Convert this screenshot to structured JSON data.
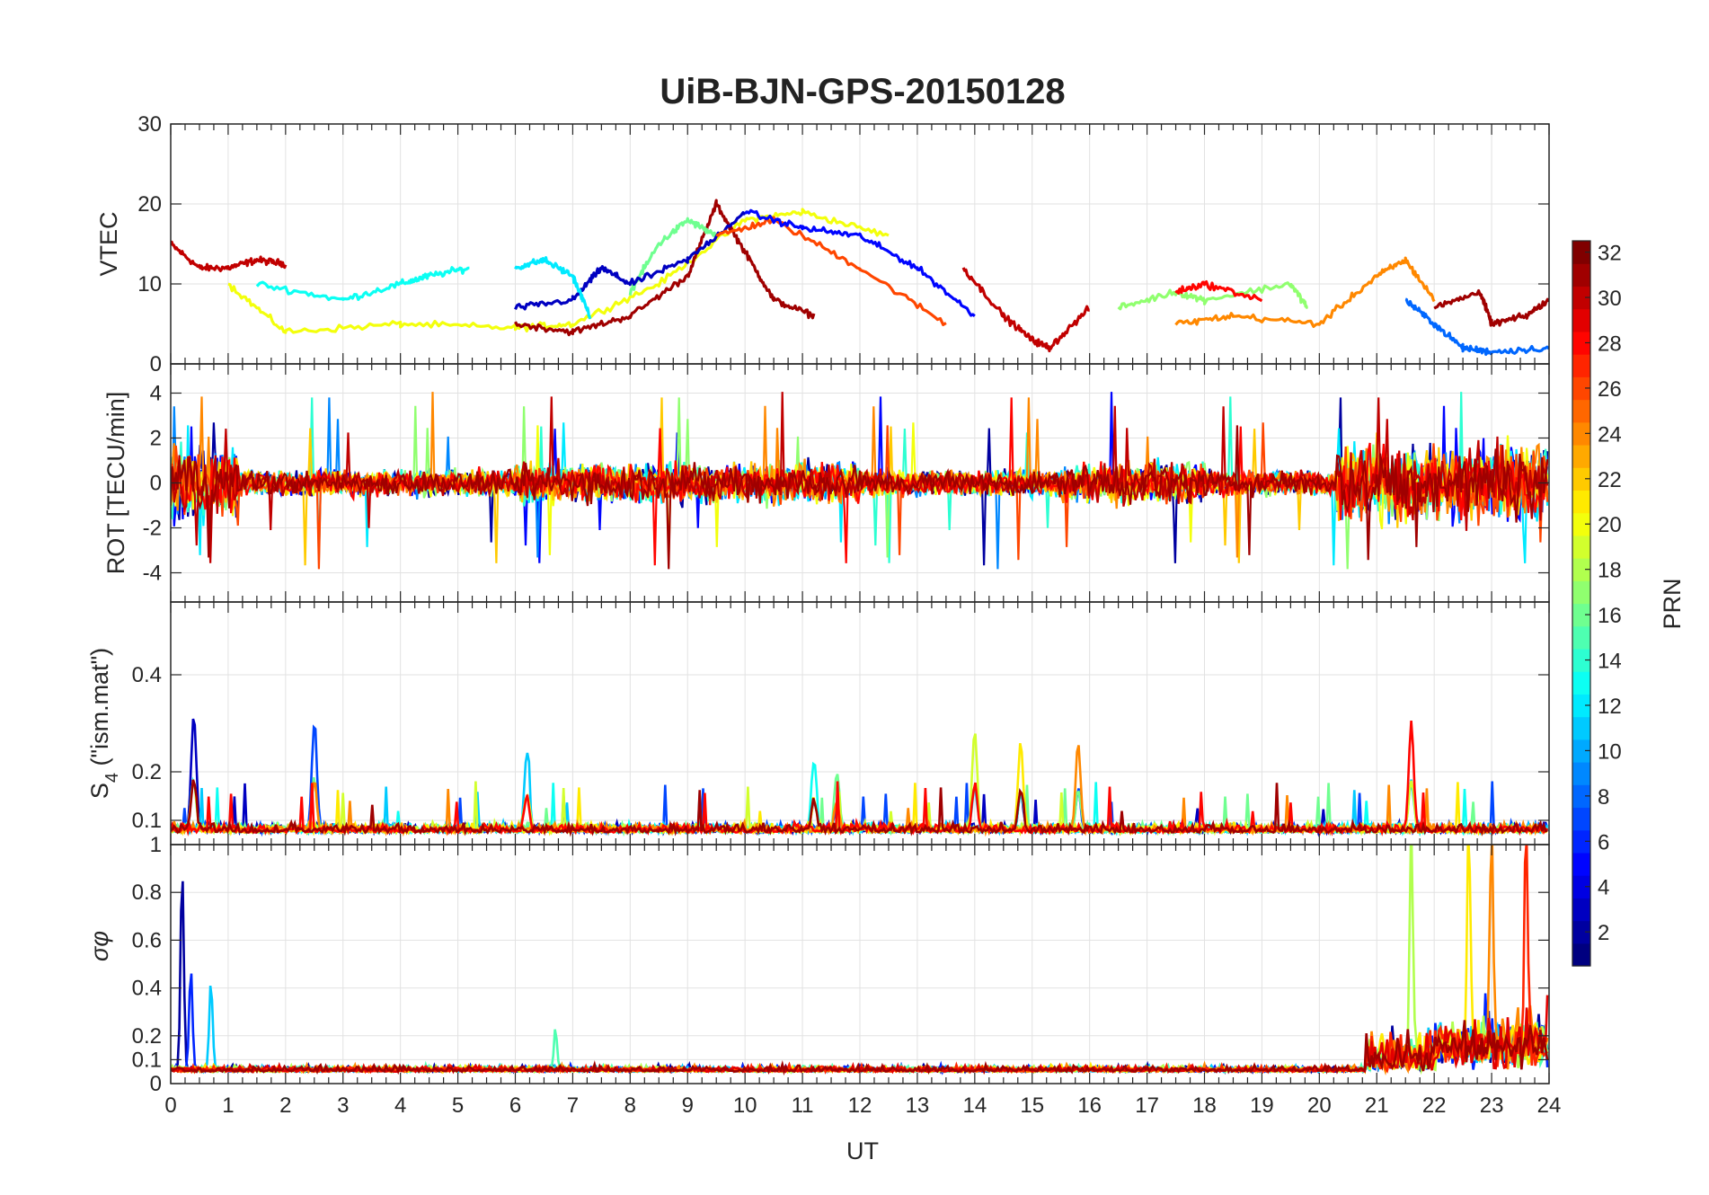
{
  "figure": {
    "title": "UiB-BJN-GPS-20150128",
    "xlabel": "UT",
    "colorbar_label": "PRN"
  },
  "chart_data": [
    {
      "type": "line",
      "panel": "VTEC",
      "ylabel": "VTEC",
      "xlim": [
        0,
        24
      ],
      "ylim": [
        0,
        30
      ],
      "yticks": [
        0,
        10,
        20,
        30
      ],
      "grid": true,
      "series_summary": [
        {
          "prn": 30,
          "x": [
            0,
            0.5,
            1,
            1.5,
            2
          ],
          "y": [
            15,
            12,
            12,
            13,
            12.5
          ]
        },
        {
          "prn": 20,
          "x": [
            1,
            2,
            4,
            6,
            7,
            8.5,
            10,
            11,
            12.5
          ],
          "y": [
            10,
            4,
            5,
            4.5,
            5,
            10,
            18,
            19,
            16
          ]
        },
        {
          "prn": 13,
          "x": [
            1.5,
            3,
            4,
            4.5,
            5.2
          ],
          "y": [
            10,
            8,
            10,
            11,
            12
          ]
        },
        {
          "prn": 31,
          "x": [
            6,
            7,
            8,
            9,
            9.5,
            10,
            10.5,
            11.2
          ],
          "y": [
            5,
            4,
            6,
            11,
            20,
            14,
            8,
            6
          ]
        },
        {
          "prn": 16,
          "x": [
            8,
            8.5,
            9,
            9.5
          ],
          "y": [
            9,
            15,
            18,
            16
          ]
        },
        {
          "prn": 3,
          "x": [
            6,
            7,
            7.5,
            8,
            9,
            10
          ],
          "y": [
            7,
            8,
            12,
            10,
            13,
            19
          ]
        },
        {
          "prn": 26,
          "x": [
            9.5,
            10.5,
            12,
            13.5
          ],
          "y": [
            16,
            18,
            12,
            5
          ]
        },
        {
          "prn": 12,
          "x": [
            6,
            6.5,
            7,
            7.3
          ],
          "y": [
            12,
            13,
            11,
            6
          ]
        },
        {
          "prn": 5,
          "x": [
            10,
            11,
            12,
            13,
            14
          ],
          "y": [
            19,
            17,
            16,
            12,
            6
          ]
        },
        {
          "prn": 30,
          "x": [
            13.8,
            14.5,
            15,
            15.3,
            16
          ],
          "y": [
            12,
            6,
            3,
            2,
            7
          ]
        },
        {
          "prn": 17,
          "x": [
            16.5,
            17.5,
            18,
            19.5,
            19.8
          ],
          "y": [
            7,
            9,
            8,
            10,
            7
          ]
        },
        {
          "prn": 24,
          "x": [
            17.5,
            18.5,
            20,
            21,
            21.5,
            22
          ],
          "y": [
            5,
            6,
            5,
            11,
            13,
            8
          ]
        },
        {
          "prn": 28,
          "x": [
            17.5,
            18,
            19
          ],
          "y": [
            9,
            10,
            8
          ]
        },
        {
          "prn": 8,
          "x": [
            21.5,
            22,
            22.5,
            23,
            24
          ],
          "y": [
            8,
            5,
            2,
            1.5,
            2
          ]
        },
        {
          "prn": 31,
          "x": [
            22,
            22.8,
            23,
            23.6,
            24
          ],
          "y": [
            7,
            9,
            5,
            6,
            8
          ]
        }
      ]
    },
    {
      "type": "line",
      "panel": "ROT",
      "ylabel": "ROT [TECU/min]",
      "xlim": [
        0,
        24
      ],
      "ylim": [
        -5.3,
        5.3
      ],
      "yticks": [
        -4,
        -2,
        0,
        2,
        4
      ],
      "grid": true,
      "description": "noise around 0 with amplitude roughly ±1 most of the day, spikes to about ±4 near 0-1 UT and 20-24 UT"
    },
    {
      "type": "line",
      "panel": "S4",
      "ylabel": "S4 (\"ism.mat\")",
      "xlim": [
        0,
        24
      ],
      "ylim": [
        0.05,
        0.55
      ],
      "yticks": [
        0.1,
        0.2,
        0.4
      ],
      "grid": true,
      "spikes": [
        {
          "x": 0.4,
          "y": 0.32
        },
        {
          "x": 2.5,
          "y": 0.3
        },
        {
          "x": 6.2,
          "y": 0.24
        },
        {
          "x": 11.2,
          "y": 0.22
        },
        {
          "x": 11.6,
          "y": 0.2
        },
        {
          "x": 14,
          "y": 0.28
        },
        {
          "x": 14.8,
          "y": 0.26
        },
        {
          "x": 15.8,
          "y": 0.26
        },
        {
          "x": 21.6,
          "y": 0.3
        }
      ]
    },
    {
      "type": "line",
      "panel": "sigma_phi",
      "ylabel": "σφ",
      "xlim": [
        0,
        24
      ],
      "ylim": [
        0,
        1
      ],
      "yticks": [
        0,
        0.1,
        0.2,
        0.4,
        0.6,
        0.8,
        1
      ],
      "grid": true,
      "spikes": [
        {
          "x": 0.2,
          "y": 0.89
        },
        {
          "x": 0.35,
          "y": 0.48
        },
        {
          "x": 0.7,
          "y": 0.43
        },
        {
          "x": 6.7,
          "y": 0.22
        },
        {
          "x": 21.6,
          "y": 1.0
        },
        {
          "x": 22.6,
          "y": 1.0
        },
        {
          "x": 23.0,
          "y": 1.0
        },
        {
          "x": 23.6,
          "y": 1.0
        },
        {
          "x": 24,
          "y": 0.45
        }
      ]
    }
  ],
  "colorbar": {
    "colormap": "jet",
    "range": [
      1,
      32
    ],
    "ticks": [
      2,
      4,
      6,
      8,
      10,
      12,
      14,
      16,
      18,
      20,
      22,
      24,
      26,
      28,
      30,
      32
    ]
  },
  "xticks": [
    "0",
    "1",
    "2",
    "3",
    "4",
    "5",
    "6",
    "7",
    "8",
    "9",
    "10",
    "11",
    "12",
    "13",
    "14",
    "15",
    "16",
    "17",
    "18",
    "19",
    "20",
    "21",
    "22",
    "23",
    "24"
  ]
}
